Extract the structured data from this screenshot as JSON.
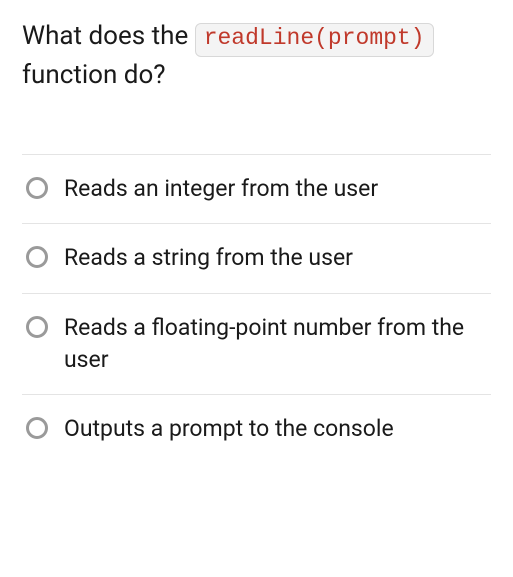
{
  "question": {
    "prefix": "What does the",
    "code": "readLine(prompt)",
    "suffix": "function do?",
    "text_color": "#1a1a1a",
    "font_size": 26,
    "code_color": "#c0392b",
    "code_bg": "#f4f4f4",
    "code_border": "#d8d8d8"
  },
  "options": [
    {
      "label": "Reads an integer from the user",
      "selected": false
    },
    {
      "label": "Reads a string from the user",
      "selected": false
    },
    {
      "label": "Reads a floating-point number from the user",
      "selected": false
    },
    {
      "label": "Outputs a prompt to the console",
      "selected": false
    }
  ],
  "styling": {
    "background_color": "#ffffff",
    "divider_color": "#e4e4e4",
    "radio_border_color": "#9a9a9a",
    "radio_size": 22,
    "option_font_size": 23,
    "option_text_color": "#1a1a1a"
  }
}
